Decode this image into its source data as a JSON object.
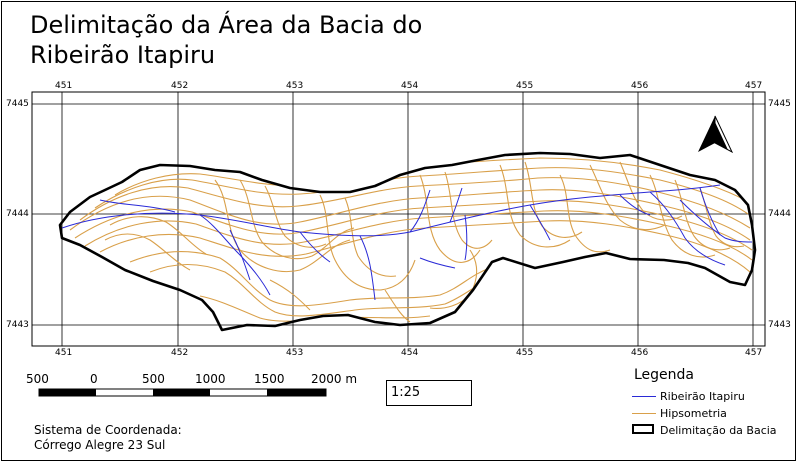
{
  "map": {
    "title_line1": "Delimitação da Área da Bacia do",
    "title_line2": "Ribeirão Itapiru",
    "x_ticks": [
      "451",
      "452",
      "453",
      "454",
      "455",
      "456",
      "457"
    ],
    "y_ticks": [
      "7445",
      "7444",
      "7443"
    ],
    "scale_labels": [
      "500",
      "0",
      "500",
      "1000",
      "1500",
      "2000 m"
    ],
    "scale_ratio": "1:25",
    "crs_line1": "Sistema de Coordenada:",
    "crs_line2": "Córrego Alegre 23 Sul",
    "north_arrow": "north-arrow-icon",
    "legend": {
      "title": "Legenda",
      "items": [
        {
          "label": "Ribeirão Itapiru",
          "color": "#2a2ad6"
        },
        {
          "label": "Hipsometria",
          "color": "#d9a04a"
        },
        {
          "label": "Delimitação da Bacia",
          "color": "#000000"
        }
      ]
    },
    "colors": {
      "river": "#2a2ad6",
      "contour": "#d9a04a",
      "boundary": "#000000"
    }
  }
}
